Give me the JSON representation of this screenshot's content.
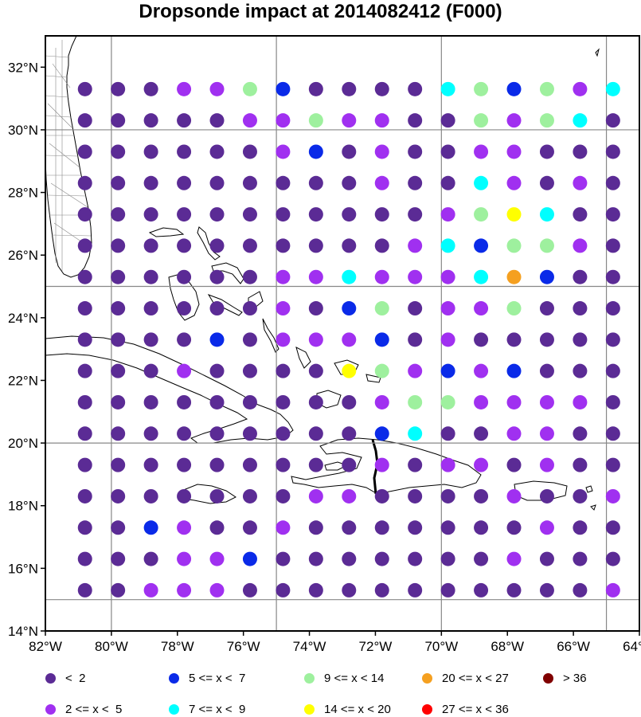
{
  "title": "Dropsonde impact at 2014082412 (F000)",
  "map": {
    "lon_range": [
      -82,
      -64
    ],
    "lat_range": [
      14,
      33
    ],
    "grid_lons": [
      -80,
      -75,
      -70,
      -65
    ],
    "grid_lats": [
      15,
      20,
      25,
      30
    ],
    "x_ticks": [
      {
        "lon": -82,
        "label": "82°W"
      },
      {
        "lon": -80,
        "label": "80°W"
      },
      {
        "lon": -78,
        "label": "78°W"
      },
      {
        "lon": -76,
        "label": "76°W"
      },
      {
        "lon": -74,
        "label": "74°W"
      },
      {
        "lon": -72,
        "label": "72°W"
      },
      {
        "lon": -70,
        "label": "70°W"
      },
      {
        "lon": -68,
        "label": "68°W"
      },
      {
        "lon": -66,
        "label": "66°W"
      },
      {
        "lon": -64,
        "label": "64°W"
      }
    ],
    "y_ticks": [
      {
        "lat": 32,
        "label": "32°N"
      },
      {
        "lat": 30,
        "label": "30°N"
      },
      {
        "lat": 28,
        "label": "28°N"
      },
      {
        "lat": 26,
        "label": "26°N"
      },
      {
        "lat": 24,
        "label": "24°N"
      },
      {
        "lat": 22,
        "label": "22°N"
      },
      {
        "lat": 20,
        "label": "20°N"
      },
      {
        "lat": 18,
        "label": "18°N"
      },
      {
        "lat": 16,
        "label": "16°N"
      },
      {
        "lat": 14,
        "label": "14°N"
      }
    ]
  },
  "point_grid": {
    "lons": [
      -80.8,
      -79.8,
      -78.8,
      -77.8,
      -76.8,
      -75.8,
      -74.8,
      -73.8,
      -72.8,
      -71.8,
      -70.8,
      -69.8,
      -68.8,
      -67.8,
      -66.8,
      -65.8,
      -64.8
    ],
    "lats": [
      31.3,
      30.3,
      29.3,
      28.3,
      27.3,
      26.3,
      25.3,
      24.3,
      23.3,
      22.3,
      21.3,
      20.3,
      19.3,
      18.3,
      17.3,
      16.3,
      15.3
    ],
    "rows": [
      "AAABBCDAAAAEGDGBE",
      "AAAAABBCBBAACBCEA",
      "AAAAAABDABAABBAAA",
      "AAAAAAAAABAAEBABA",
      "AAAAAAAAAAABCHEAA",
      "AAAAAAAAAABEDCCBA",
      "AAAAAABBEBBBEIDAA",
      "AAAAAABADCABBCAAA",
      "AAAADABBBDABAAAAA",
      "AAABAAAAHCBDBDAAA",
      "AAAAAAAAABCCBBBBA",
      "AAAAAAAAADEAABBAA",
      "AAAAAAAAABABBABAA",
      "AAAAAAABBAAAABAAB",
      "AADBAABAAAAAAABAA",
      "AAABBDAAAAAAABAAA",
      "AABBBAAAAAAAAAAAB"
    ],
    "colors": {
      "A": "#5b2b95",
      "B": "#a030f0",
      "C": "#9ef09e",
      "D": "#0a2ae8",
      "E": "#00ffff",
      "G": "#9ef09e",
      "H": "#ffff00",
      "I": "#f5a020"
    }
  },
  "legend": [
    {
      "label": "<  2",
      "color": "#5b2b95"
    },
    {
      "label": "5 <= x <  7",
      "color": "#0a2ae8"
    },
    {
      "label": "9 <= x < 14",
      "color": "#9ef09e"
    },
    {
      "label": "20 <= x < 27",
      "color": "#f5a020"
    },
    {
      "label": "> 36",
      "color": "#800000"
    },
    {
      "label": "2 <= x <  5",
      "color": "#a030f0"
    },
    {
      "label": "7 <= x <  9",
      "color": "#00ffff"
    },
    {
      "label": "14 <= x < 20",
      "color": "#ffff00"
    },
    {
      "label": "27 <= x < 36",
      "color": "#ff0000"
    }
  ]
}
